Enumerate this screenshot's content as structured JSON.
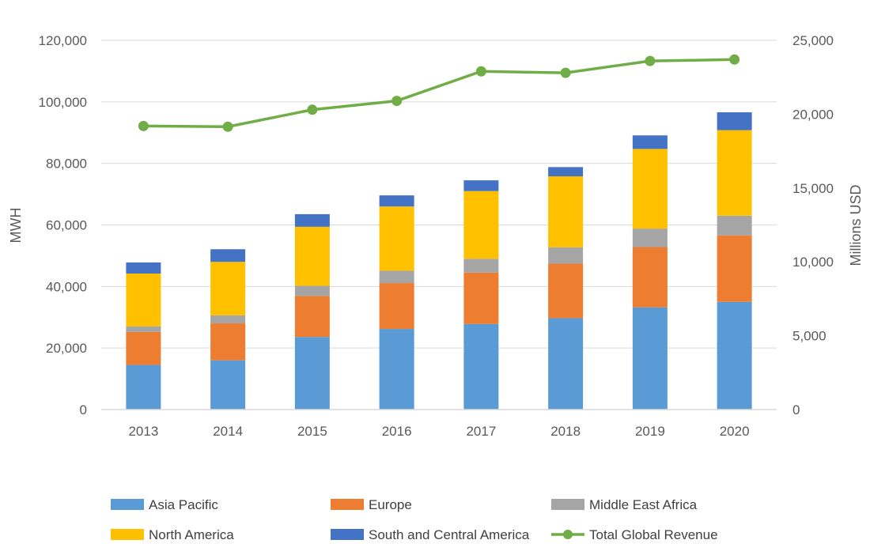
{
  "chart_data": {
    "type": "bar",
    "stacked": true,
    "categories": [
      "2013",
      "2014",
      "2015",
      "2016",
      "2017",
      "2018",
      "2019",
      "2020"
    ],
    "series": [
      {
        "name": "Asia Pacific",
        "color": "#5B9BD5",
        "values": [
          14500,
          16000,
          23600,
          26200,
          27800,
          29700,
          33200,
          35000
        ]
      },
      {
        "name": "Europe",
        "color": "#ED7D31",
        "values": [
          10700,
          12000,
          13300,
          14900,
          16700,
          17700,
          19600,
          21600
        ]
      },
      {
        "name": "Middle East Africa",
        "color": "#A5A5A5",
        "values": [
          1800,
          2600,
          3300,
          4000,
          4500,
          5300,
          6000,
          6400
        ]
      },
      {
        "name": "North America",
        "color": "#FFC000",
        "values": [
          17200,
          17400,
          19200,
          20900,
          22000,
          23100,
          25900,
          27800
        ]
      },
      {
        "name": "South and Central America",
        "color": "#4472C4",
        "values": [
          3600,
          4100,
          4100,
          3600,
          3500,
          3000,
          4400,
          5800
        ]
      }
    ],
    "line_series": [
      {
        "name": "Total Global Revenue",
        "color": "#70AD47",
        "axis": "right",
        "values": [
          19200,
          19150,
          20300,
          20900,
          22900,
          22800,
          23600,
          23700
        ]
      }
    ],
    "y_left": {
      "label": "MWH",
      "min": 0,
      "max": 120000,
      "step": 20000,
      "ticks": [
        "0",
        "20,000",
        "40,000",
        "60,000",
        "80,000",
        "100,000",
        "120,000"
      ]
    },
    "y_right": {
      "label": "Millions USD",
      "min": 0,
      "max": 25000,
      "step": 5000,
      "ticks": [
        "0",
        "5,000",
        "10,000",
        "15,000",
        "20,000",
        "25,000"
      ]
    },
    "grid": true,
    "legend_position": "bottom"
  }
}
